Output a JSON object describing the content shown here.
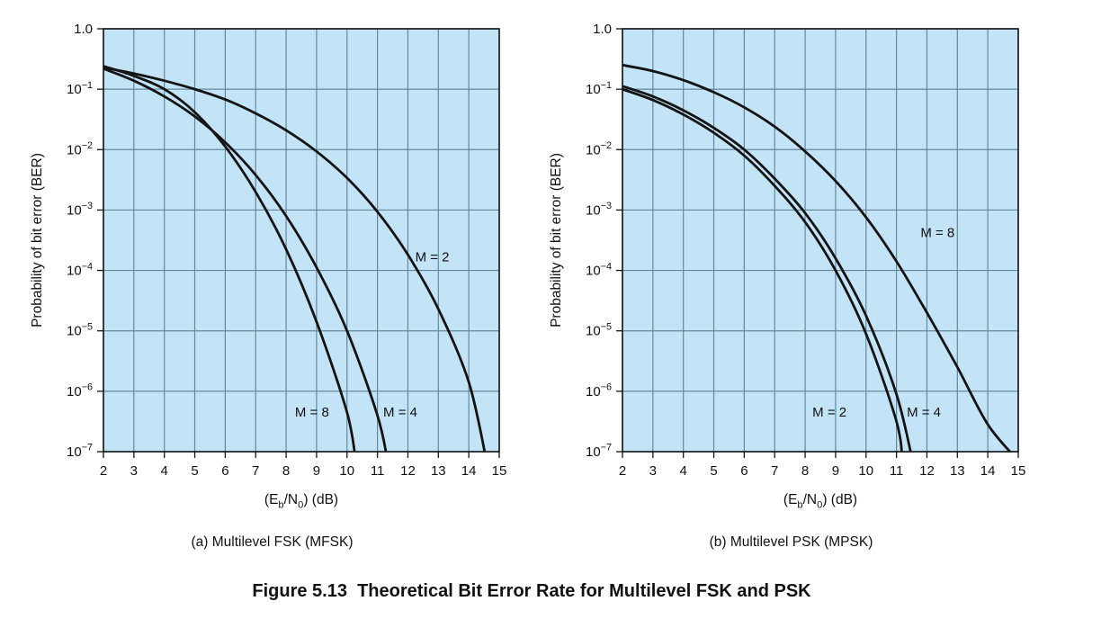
{
  "figure": {
    "caption": "Figure 5.13  Theoretical Bit Error Rate for Multilevel FSK and PSK"
  },
  "colors": {
    "page_bg": "#ffffff",
    "plot_bg": "#c3e3f6",
    "grid": "#66889e",
    "curve": "#141414",
    "frame": "#141414",
    "text": "#111111"
  },
  "chart_data": [
    {
      "type": "line",
      "title": "(a) Multilevel FSK (MFSK)",
      "xlabel": "(E_b/N_0) (dB)",
      "ylabel": "Probability of bit error (BER)",
      "xlim": [
        2,
        15
      ],
      "ylim_log10": [
        0,
        -7
      ],
      "grid": true,
      "legend_position": "inline-curve-labels",
      "x_ticks": [
        2,
        3,
        4,
        5,
        6,
        7,
        8,
        9,
        10,
        11,
        12,
        13,
        14,
        15
      ],
      "y_ticks": [
        "1.0",
        "10^-1",
        "10^-2",
        "10^-3",
        "10^-4",
        "10^-5",
        "10^-6",
        "10^-7"
      ],
      "series": [
        {
          "name": "M = 2",
          "label_at": {
            "x": 12.8,
            "log10y": -3.85,
            "anchor": "middle"
          },
          "points_log10": [
            [
              2,
              -0.64
            ],
            [
              3,
              -0.74
            ],
            [
              4,
              -0.86
            ],
            [
              5,
              -1.0
            ],
            [
              6,
              -1.17
            ],
            [
              7,
              -1.4
            ],
            [
              8,
              -1.68
            ],
            [
              9,
              -2.03
            ],
            [
              10,
              -2.47
            ],
            [
              11,
              -3.03
            ],
            [
              12,
              -3.74
            ],
            [
              13,
              -4.64
            ],
            [
              14,
              -5.85
            ],
            [
              14.6,
              -7.2
            ]
          ]
        },
        {
          "name": "M = 4",
          "label_at": {
            "x": 11.75,
            "log10y": -6.42,
            "anchor": "middle"
          },
          "points_log10": [
            [
              2,
              -0.66
            ],
            [
              3,
              -0.86
            ],
            [
              4,
              -1.12
            ],
            [
              5,
              -1.45
            ],
            [
              6,
              -1.88
            ],
            [
              7,
              -2.42
            ],
            [
              8,
              -3.1
            ],
            [
              9,
              -3.95
            ],
            [
              10,
              -5.0
            ],
            [
              11,
              -6.4
            ],
            [
              11.35,
              -7.2
            ]
          ]
        },
        {
          "name": "M = 8",
          "label_at": {
            "x": 8.85,
            "log10y": -6.42,
            "anchor": "middle"
          },
          "points_log10": [
            [
              2,
              -0.62
            ],
            [
              3,
              -0.78
            ],
            [
              4,
              -1.0
            ],
            [
              5,
              -1.38
            ],
            [
              6,
              -1.95
            ],
            [
              7,
              -2.7
            ],
            [
              8,
              -3.65
            ],
            [
              9,
              -4.85
            ],
            [
              10,
              -6.35
            ],
            [
              10.3,
              -7.2
            ]
          ]
        }
      ]
    },
    {
      "type": "line",
      "title": "(b) Multilevel PSK (MPSK)",
      "xlabel": "(E_b/N_0) (dB)",
      "ylabel": "Probability of bit error (BER)",
      "xlim": [
        2,
        15
      ],
      "ylim_log10": [
        0,
        -7
      ],
      "grid": true,
      "legend_position": "inline-curve-labels",
      "x_ticks": [
        2,
        3,
        4,
        5,
        6,
        7,
        8,
        9,
        10,
        11,
        12,
        13,
        14,
        15
      ],
      "y_ticks": [
        "1.0",
        "10^-1",
        "10^-2",
        "10^-3",
        "10^-4",
        "10^-5",
        "10^-6",
        "10^-7"
      ],
      "series": [
        {
          "name": "M = 2",
          "label_at": {
            "x": 8.8,
            "log10y": -6.42,
            "anchor": "middle"
          },
          "points_log10": [
            [
              2,
              -1.0
            ],
            [
              3,
              -1.18
            ],
            [
              4,
              -1.42
            ],
            [
              5,
              -1.72
            ],
            [
              6,
              -2.1
            ],
            [
              7,
              -2.6
            ],
            [
              8,
              -3.2
            ],
            [
              9,
              -4.0
            ],
            [
              10,
              -5.05
            ],
            [
              11,
              -6.5
            ],
            [
              11.2,
              -7.2
            ]
          ]
        },
        {
          "name": "M = 4",
          "label_at": {
            "x": 11.9,
            "log10y": -6.42,
            "anchor": "middle"
          },
          "points_log10": [
            [
              2,
              -0.95
            ],
            [
              3,
              -1.12
            ],
            [
              4,
              -1.35
            ],
            [
              5,
              -1.64
            ],
            [
              6,
              -2.0
            ],
            [
              7,
              -2.48
            ],
            [
              8,
              -3.05
            ],
            [
              9,
              -3.8
            ],
            [
              10,
              -4.75
            ],
            [
              11,
              -6.05
            ],
            [
              11.55,
              -7.2
            ]
          ]
        },
        {
          "name": "M = 8",
          "label_at": {
            "x": 12.35,
            "log10y": -3.45,
            "anchor": "middle"
          },
          "points_log10": [
            [
              2,
              -0.6
            ],
            [
              3,
              -0.7
            ],
            [
              4,
              -0.85
            ],
            [
              5,
              -1.05
            ],
            [
              6,
              -1.3
            ],
            [
              7,
              -1.62
            ],
            [
              8,
              -2.03
            ],
            [
              9,
              -2.52
            ],
            [
              10,
              -3.12
            ],
            [
              11,
              -3.85
            ],
            [
              12,
              -4.7
            ],
            [
              13,
              -5.6
            ],
            [
              14,
              -6.55
            ],
            [
              15,
              -7.15
            ]
          ]
        }
      ]
    }
  ]
}
